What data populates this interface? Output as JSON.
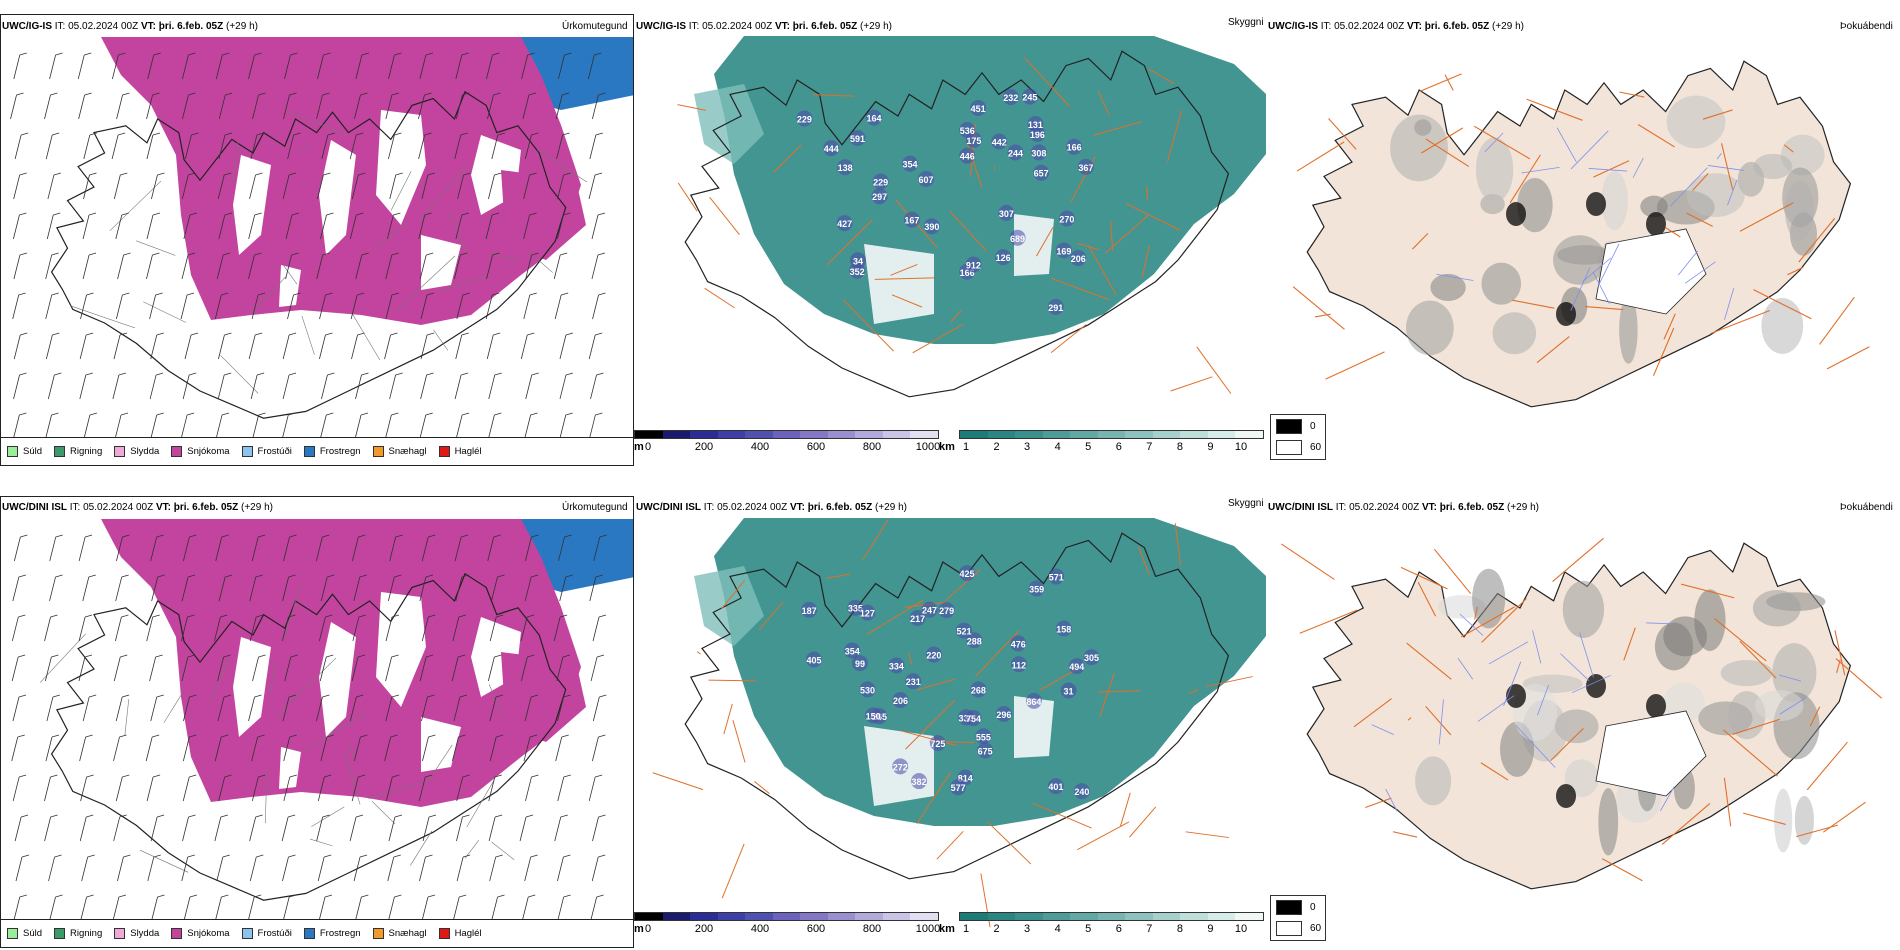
{
  "rows": [
    {
      "model": "UWC/IG-IS",
      "it_label": "IT:",
      "it_value": "05.02.2024 00Z",
      "vt_label": "VT:",
      "vt_value": "þri. 6.feb. 05Z",
      "lead": "(+29 h)",
      "precip_title": "Úrkomutegund",
      "cloud_title": "Skyggni",
      "fog_title": "Þokuábendi",
      "values": [
        "427",
        "232",
        "354",
        "352",
        "291",
        "390",
        "270",
        "444",
        "689",
        "175",
        "196",
        "166",
        "451",
        "164",
        "229",
        "297",
        "657",
        "34",
        "206",
        "308",
        "442",
        "166",
        "536",
        "229",
        "446",
        "607",
        "912",
        "591",
        "244",
        "307",
        "138",
        "131",
        "126",
        "245",
        "367",
        "169",
        "167"
      ]
    },
    {
      "model": "UWC/DINI ISL",
      "it_label": "IT:",
      "it_value": "05.02.2024 00Z",
      "vt_label": "VT:",
      "vt_value": "þri. 6.feb. 05Z",
      "lead": "(+29 h)",
      "precip_title": "Úrkomutegund",
      "cloud_title": "Skyggni",
      "fog_title": "Þokuábendi",
      "values": [
        "305",
        "476",
        "288",
        "354",
        "272",
        "335",
        "494",
        "265",
        "425",
        "814",
        "401",
        "187",
        "217",
        "247",
        "240",
        "864",
        "206",
        "675",
        "405",
        "31",
        "382",
        "577",
        "220",
        "555",
        "330",
        "334",
        "268",
        "725",
        "571",
        "296",
        "754",
        "231",
        "99",
        "150",
        "127",
        "279",
        "359",
        "112",
        "158",
        "521",
        "530"
      ]
    }
  ],
  "precip_legend": [
    {
      "label": "Súld",
      "color": "#99ee99"
    },
    {
      "label": "Rigning",
      "color": "#3c9a6a"
    },
    {
      "label": "Slydda",
      "color": "#f0a8d8"
    },
    {
      "label": "Snjókoma",
      "color": "#c2449e"
    },
    {
      "label": "Frostúði",
      "color": "#8cc4f0"
    },
    {
      "label": "Frostregn",
      "color": "#2b78c2"
    },
    {
      "label": "Snæhagl",
      "color": "#f09a2a"
    },
    {
      "label": "Haglél",
      "color": "#e01818"
    }
  ],
  "cloud_base_scale": {
    "unit": "m",
    "ticks": [
      "0",
      "200",
      "400",
      "600",
      "800",
      "1000"
    ],
    "colors": [
      "#000000",
      "#1a1a6e",
      "#2c2c96",
      "#3e3ea8",
      "#5050b0",
      "#6a62bc",
      "#8278c6",
      "#9a90d0",
      "#b2aada",
      "#cac4e6",
      "#e2dff2"
    ]
  },
  "visibility_scale": {
    "unit": "km",
    "ticks": [
      "1",
      "2",
      "3",
      "4",
      "5",
      "6",
      "7",
      "8",
      "9",
      "10"
    ],
    "colors": [
      "#1e7c78",
      "#2a8682",
      "#3a908c",
      "#4e9c98",
      "#62a8a4",
      "#78b4b0",
      "#8ec2be",
      "#a6d0cc",
      "#bededa",
      "#d6ece8",
      "#f0f8f6"
    ]
  },
  "fog_legend": [
    {
      "label": "0",
      "color": "#000000"
    },
    {
      "label": "60",
      "color": "#ffffff"
    }
  ],
  "colors": {
    "snow": "#c2449e",
    "freezing_rain": "#2b78c2",
    "visibility_low": "#2f8a86",
    "cloud_base_low": "#4a48a8",
    "land_fog": "#f2e4d8",
    "roads": "#e0702a",
    "rivers": "#7f8ff0"
  }
}
